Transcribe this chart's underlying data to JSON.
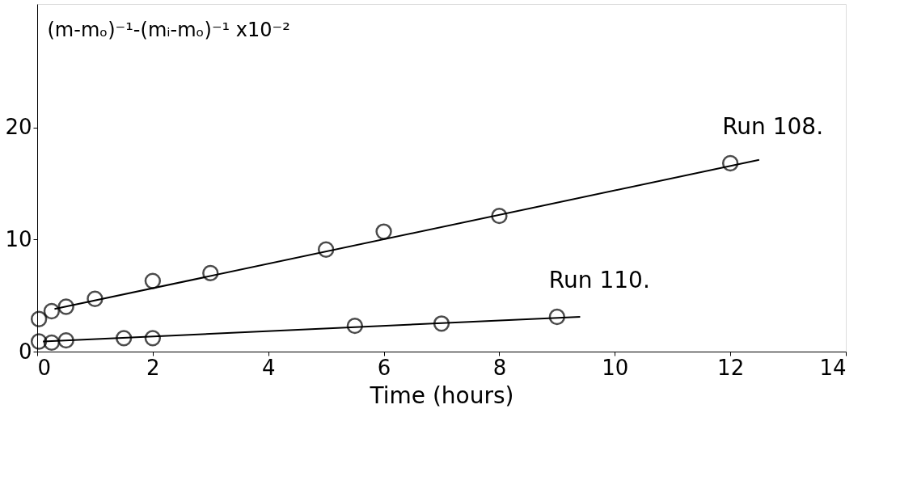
{
  "chart_data": {
    "type": "scatter",
    "xlabel": "Time (hours)",
    "ylabel": "(m-mₒ)⁻¹-(mᵢ-mₒ)⁻¹ x10⁻²",
    "xlim": [
      0,
      14
    ],
    "xticks": [
      0,
      2,
      4,
      6,
      8,
      10,
      12,
      14
    ],
    "ylim": [
      0,
      31
    ],
    "yticks": [
      0,
      10,
      20
    ],
    "grid": false,
    "marker": "circle",
    "series": [
      {
        "name": "Run 108.",
        "color": "#000000",
        "x": [
          0.03,
          0.25,
          0.5,
          1,
          2,
          3,
          5,
          6,
          8,
          12
        ],
        "values": [
          2.9,
          3.6,
          4.0,
          4.7,
          6.3,
          7.0,
          9.1,
          10.7,
          12.1,
          16.8
        ]
      },
      {
        "name": "Run 110.",
        "color": "#000000",
        "x": [
          0.03,
          0.25,
          0.5,
          1.5,
          2,
          5.5,
          7,
          9
        ],
        "values": [
          0.9,
          0.8,
          1.0,
          1.2,
          1.2,
          2.3,
          2.5,
          3.1
        ]
      },
      {
        "color": "#000000",
        "type": "line",
        "marker": "none",
        "line_style": "solid",
        "x": [
          0.3,
          12.5
        ],
        "values": [
          3.8,
          17.1
        ]
      },
      {
        "color": "#000000",
        "type": "line",
        "marker": "none",
        "line_style": "solid",
        "x": [
          0.1,
          9.4
        ],
        "values": [
          0.9,
          3.1
        ]
      }
    ]
  }
}
